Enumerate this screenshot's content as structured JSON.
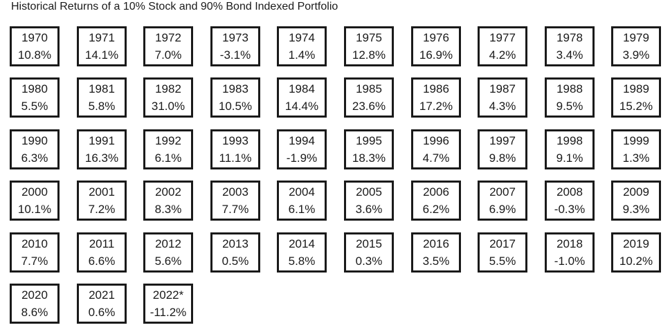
{
  "title": "Historical Returns of a 10% Stock and 90% Bond Indexed Portfolio",
  "chart_data": {
    "type": "table",
    "title": "Historical Returns of a 10% Stock and 90% Bond Indexed Portfolio",
    "columns_per_row": 10,
    "categories": [
      "1970",
      "1971",
      "1972",
      "1973",
      "1974",
      "1975",
      "1976",
      "1977",
      "1978",
      "1979",
      "1980",
      "1981",
      "1982",
      "1983",
      "1984",
      "1985",
      "1986",
      "1987",
      "1988",
      "1989",
      "1990",
      "1991",
      "1992",
      "1993",
      "1994",
      "1995",
      "1996",
      "1997",
      "1998",
      "1999",
      "2000",
      "2001",
      "2002",
      "2003",
      "2004",
      "2005",
      "2006",
      "2007",
      "2008",
      "2009",
      "2010",
      "2011",
      "2012",
      "2013",
      "2014",
      "2015",
      "2016",
      "2017",
      "2018",
      "2019",
      "2020",
      "2021",
      "2022*"
    ],
    "values": [
      10.8,
      14.1,
      7.0,
      -3.1,
      1.4,
      12.8,
      16.9,
      4.2,
      3.4,
      3.9,
      5.5,
      5.8,
      31.0,
      10.5,
      14.4,
      23.6,
      17.2,
      4.3,
      9.5,
      15.2,
      6.3,
      16.3,
      6.1,
      11.1,
      -1.9,
      18.3,
      4.7,
      9.8,
      9.1,
      1.3,
      10.1,
      7.2,
      8.3,
      7.7,
      6.1,
      3.6,
      6.2,
      6.9,
      -0.3,
      9.3,
      7.7,
      6.6,
      5.6,
      0.5,
      5.8,
      0.3,
      3.5,
      5.5,
      -1.0,
      10.2,
      8.6,
      0.6,
      -11.2
    ],
    "labels": [
      "10.8%",
      "14.1%",
      "7.0%",
      "-3.1%",
      "1.4%",
      "12.8%",
      "16.9%",
      "4.2%",
      "3.4%",
      "3.9%",
      "5.5%",
      "5.8%",
      "31.0%",
      "10.5%",
      "14.4%",
      "23.6%",
      "17.2%",
      "4.3%",
      "9.5%",
      "15.2%",
      "6.3%",
      "16.3%",
      "6.1%",
      "11.1%",
      "-1.9%",
      "18.3%",
      "4.7%",
      "9.8%",
      "9.1%",
      "1.3%",
      "10.1%",
      "7.2%",
      "8.3%",
      "7.7%",
      "6.1%",
      "3.6%",
      "6.2%",
      "6.9%",
      "-0.3%",
      "9.3%",
      "7.7%",
      "6.6%",
      "5.6%",
      "0.5%",
      "5.8%",
      "0.3%",
      "3.5%",
      "5.5%",
      "-1.0%",
      "10.2%",
      "8.6%",
      "0.6%",
      "-11.2%"
    ]
  }
}
